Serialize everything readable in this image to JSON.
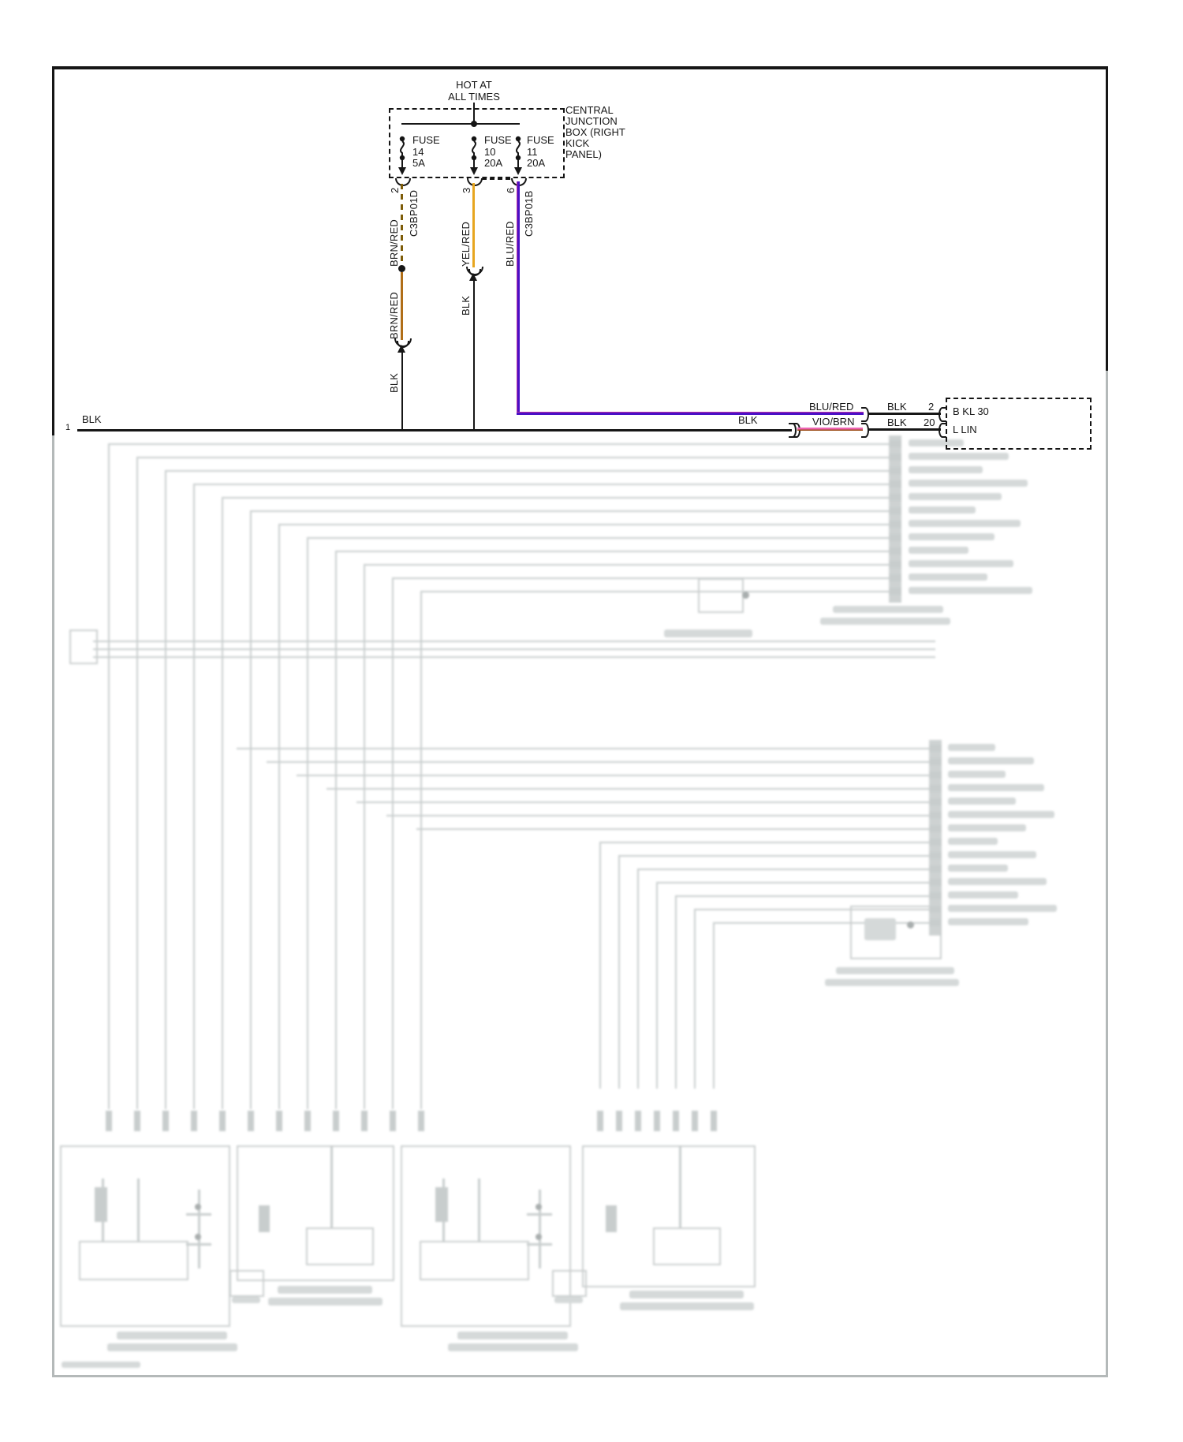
{
  "power_source": {
    "label_line1": "HOT AT",
    "label_line2": "ALL TIMES"
  },
  "junction_box": {
    "label_lines": [
      "CENTRAL",
      "JUNCTION",
      "BOX (RIGHT",
      "KICK",
      "PANEL)"
    ],
    "fuses": [
      {
        "name": "FUSE",
        "number": "14",
        "rating": "5A"
      },
      {
        "name": "FUSE",
        "number": "10",
        "rating": "20A"
      },
      {
        "name": "FUSE",
        "number": "11",
        "rating": "20A"
      }
    ]
  },
  "branches": {
    "left": {
      "pin": "2",
      "connector": "C3BP01D",
      "wire_top": "BRN/RED",
      "wire_mid": "BRN/RED",
      "wire_bottom": "BLK"
    },
    "middle": {
      "pin": "3",
      "wire_top": "YEL/RED",
      "wire_bottom": "BLK"
    },
    "right": {
      "pin": "6",
      "connector": "C3BP01B",
      "wire": "BLU/RED"
    }
  },
  "ground_bus": {
    "pin": "1",
    "label_left": "BLK",
    "label_right": "BLK"
  },
  "module_rows": {
    "row1": {
      "wire_label": "BLU/RED",
      "jumper_label": "BLK",
      "pin": "2",
      "module_terminal": "B KL 30"
    },
    "row2": {
      "wire_label": "VIO/BRN",
      "jumper_label": "BLK",
      "pin": "20",
      "module_terminal": "L LIN"
    }
  },
  "colors": {
    "blk": "#161616",
    "brn_red_dash": "#7d5c08",
    "brn_red": "#b06e18",
    "yel_red": "#e7a61f",
    "blu_red": "#4a10c6",
    "blu_red_stripe": "#b62fa6",
    "vio_brn": "#ee64b4",
    "vio_brn_edge": "#9a4a14"
  }
}
